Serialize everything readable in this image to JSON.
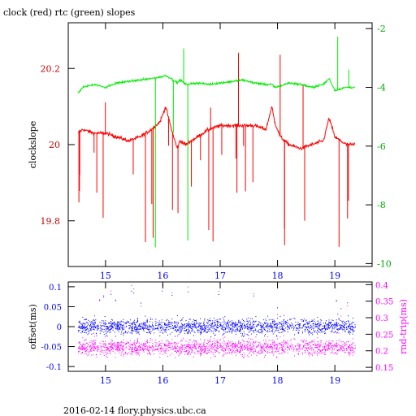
{
  "title": "clock (red) rtc (green) slopes",
  "footer": "2016-02-14 flory.physics.ubc.ca",
  "colors": {
    "frame": "#000000",
    "clock": "#ff0000",
    "rtc": "#00ee00",
    "offset": "#0000ff",
    "rndtrip": "#ff00ff"
  },
  "chart_data": [
    {
      "type": "line",
      "title": "clock (red) rtc (green) slopes",
      "ylabel": "clockslope",
      "x_ticks": [
        15,
        16,
        17,
        18,
        19
      ],
      "xlim": [
        14.35,
        19.65
      ],
      "ylim": [
        19.68,
        20.32
      ],
      "y_ticks": [
        19.8,
        20,
        20.2
      ],
      "y2lim": [
        -10.1,
        -1.8
      ],
      "y2_ticks": [
        -10,
        -8,
        -6,
        -4,
        -2
      ],
      "grid": false,
      "series": [
        {
          "name": "clock",
          "axis": "left",
          "x": [
            14.52,
            14.6,
            14.8,
            15.0,
            15.2,
            15.4,
            15.6,
            15.8,
            15.95,
            16.05,
            16.15,
            16.25,
            16.3,
            16.4,
            16.6,
            16.8,
            17.0,
            17.2,
            17.4,
            17.6,
            17.8,
            17.9,
            17.95,
            18.05,
            18.2,
            18.4,
            18.6,
            18.8,
            18.9,
            19.0,
            19.2,
            19.35
          ],
          "values": [
            20.03,
            20.04,
            20.03,
            20.03,
            20.02,
            20.01,
            20.02,
            20.04,
            20.06,
            20.1,
            20.04,
            19.99,
            20.01,
            20.0,
            20.02,
            20.04,
            20.05,
            20.05,
            20.05,
            20.05,
            20.04,
            20.1,
            20.06,
            20.02,
            20.0,
            19.99,
            20.0,
            20.01,
            20.07,
            20.02,
            20.0,
            20.0
          ]
        },
        {
          "name": "rtc",
          "axis": "right",
          "x": [
            14.52,
            14.6,
            14.8,
            15.0,
            15.2,
            15.4,
            15.6,
            15.8,
            15.95,
            16.05,
            16.15,
            16.25,
            16.3,
            16.4,
            16.6,
            16.8,
            17.0,
            17.2,
            17.4,
            17.6,
            17.8,
            17.9,
            17.95,
            18.05,
            18.2,
            18.4,
            18.6,
            18.8,
            18.9,
            19.0,
            19.2,
            19.35
          ],
          "values": [
            -4.2,
            -4.0,
            -3.9,
            -4.0,
            -3.85,
            -3.8,
            -3.75,
            -3.7,
            -3.65,
            -3.6,
            -3.7,
            -3.85,
            -3.75,
            -3.9,
            -3.85,
            -3.9,
            -3.85,
            -3.8,
            -3.75,
            -3.85,
            -3.9,
            -3.9,
            -4.0,
            -3.95,
            -3.85,
            -3.9,
            -4.0,
            -3.9,
            -3.7,
            -4.1,
            -4.0,
            -4.0
          ]
        }
      ]
    },
    {
      "type": "scatter",
      "xlabel": "",
      "ylabel": "offset(ms)",
      "y2label": "rnd-trip(ms)",
      "x_ticks": [
        15,
        16,
        17,
        18,
        19
      ],
      "xlim": [
        14.35,
        19.65
      ],
      "ylim": [
        -0.112,
        0.112
      ],
      "y_ticks": [
        -0.1,
        -0.05,
        0,
        0.05,
        0.1
      ],
      "y_tick_labels": [
        "-0.1",
        "-0.05",
        "0",
        "0.05",
        "0.1"
      ],
      "y2lim": [
        0.138,
        0.408
      ],
      "y2_ticks": [
        0.15,
        0.2,
        0.25,
        0.3,
        0.35,
        0.4
      ],
      "y2_tick_labels": [
        "0.15",
        "0.2",
        "0.25",
        "0.3",
        "0.35",
        "0.4"
      ],
      "grid": false,
      "series": [
        {
          "name": "offset",
          "axis": "left",
          "x_range": [
            14.52,
            19.35
          ],
          "center": 0.0,
          "spread": 0.02,
          "outlier_max": 0.09
        },
        {
          "name": "rnd-trip",
          "axis": "right",
          "x_range": [
            14.52,
            19.35
          ],
          "center": 0.21,
          "spread": 0.025,
          "outlier_max": 0.4
        }
      ]
    }
  ]
}
